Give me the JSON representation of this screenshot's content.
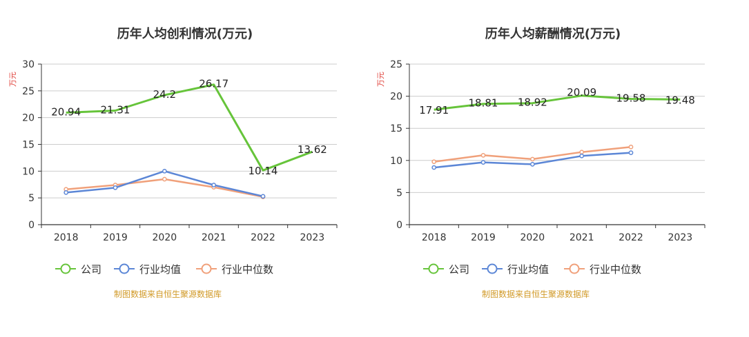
{
  "chart_data": [
    {
      "type": "line",
      "title": "历年人均创利情况(万元)",
      "ylabel": "万元",
      "categories": [
        "2018",
        "2019",
        "2020",
        "2021",
        "2022",
        "2023"
      ],
      "ylim": [
        0,
        30
      ],
      "yticks": [
        0,
        5,
        10,
        15,
        20,
        25,
        30
      ],
      "grid": true,
      "legend": "bottom",
      "source": "制图数据来自恒生聚源数据库",
      "series": [
        {
          "name": "公司",
          "color": "#66c43a",
          "values": [
            20.94,
            21.31,
            24.2,
            26.17,
            10.14,
            13.62
          ],
          "labels": [
            "20.94",
            "21.31",
            "24.2",
            "26.17",
            "10.14",
            "13.62"
          ]
        },
        {
          "name": "行业均值",
          "color": "#5b86d6",
          "values": [
            6.0,
            6.9,
            10.0,
            7.4,
            5.3,
            null
          ]
        },
        {
          "name": "行业中位数",
          "color": "#f0a07a",
          "values": [
            6.6,
            7.4,
            8.5,
            7.0,
            5.2,
            null
          ]
        }
      ]
    },
    {
      "type": "line",
      "title": "历年人均薪酬情况(万元)",
      "ylabel": "万元",
      "categories": [
        "2018",
        "2019",
        "2020",
        "2021",
        "2022",
        "2023"
      ],
      "ylim": [
        0,
        25
      ],
      "yticks": [
        0,
        5,
        10,
        15,
        20,
        25
      ],
      "grid": true,
      "legend": "bottom",
      "source": "制图数据来自恒生聚源数据库",
      "series": [
        {
          "name": "公司",
          "color": "#66c43a",
          "values": [
            17.91,
            18.81,
            18.92,
            20.09,
            19.58,
            19.48
          ],
          "labels": [
            "17.91",
            "18.81",
            "18.92",
            "20.09",
            "19.58",
            "19.48"
          ]
        },
        {
          "name": "行业均值",
          "color": "#5b86d6",
          "values": [
            8.9,
            9.7,
            9.4,
            10.7,
            11.2,
            null
          ]
        },
        {
          "name": "行业中位数",
          "color": "#f0a07a",
          "values": [
            9.8,
            10.8,
            10.2,
            11.3,
            12.1,
            null
          ]
        }
      ]
    }
  ]
}
